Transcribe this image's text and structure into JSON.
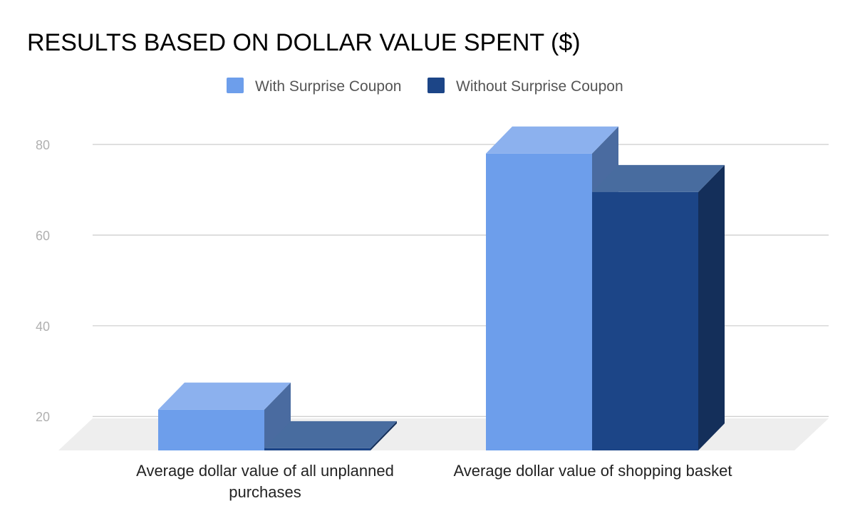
{
  "chart_data": {
    "type": "bar",
    "title": "RESULTS BASED ON DOLLAR VALUE SPENT ($)",
    "xlabel": "",
    "ylabel": "",
    "categories": [
      [
        "Average dollar value of all unplanned",
        "purchases"
      ],
      [
        "Average dollar value of shopping basket"
      ]
    ],
    "series": [
      {
        "name": "With Surprise Coupon",
        "values": [
          21.5,
          78
        ],
        "color": "#6d9eeb",
        "top_color": "#8cb1ee",
        "side_color": "#4a6ba0"
      },
      {
        "name": "Without Surprise Coupon",
        "values": [
          13,
          69.5
        ],
        "color": "#1c4587",
        "top_color": "#486c9f",
        "side_color": "#142f5a"
      }
    ],
    "ylim": [
      12.5,
      85
    ],
    "yticks": [
      20,
      40,
      60,
      80
    ],
    "grid": true,
    "legend": "top-center",
    "style": "3d"
  }
}
